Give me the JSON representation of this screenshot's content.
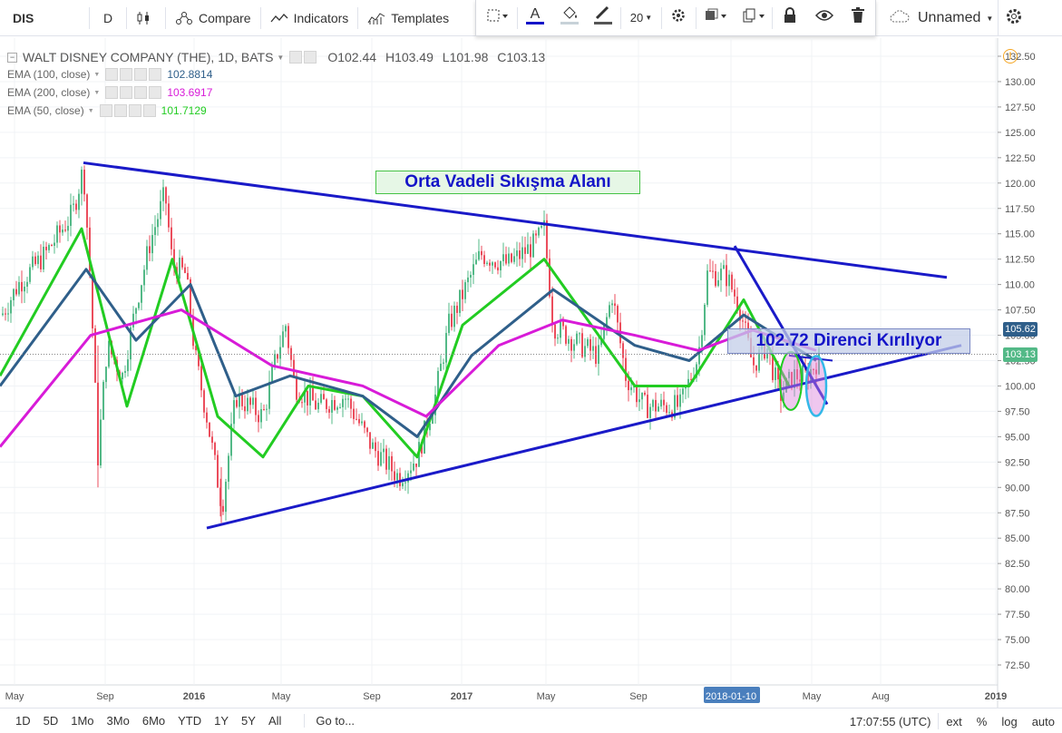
{
  "toolbar": {
    "symbol": "DIS",
    "interval": "D",
    "compare_label": "Compare",
    "indicators_label": "Indicators",
    "templates_label": "Templates",
    "font_size": "20",
    "layout_name": "Unnamed"
  },
  "legend": {
    "title": "WALT DISNEY COMPANY (THE), 1D, BATS",
    "open": "O102.44",
    "high": "H103.49",
    "low": "L101.98",
    "close": "C103.13",
    "indicators": [
      {
        "name": "EMA (100, close)",
        "value": "102.8814",
        "color": "#2f5f8a"
      },
      {
        "name": "EMA (200, close)",
        "value": "103.6917",
        "color": "#d81bd8"
      },
      {
        "name": "EMA (50, close)",
        "value": "101.7129",
        "color": "#22cc22"
      }
    ]
  },
  "annotations": {
    "zone_label": "Orta Vadeli Sıkışma Alanı",
    "break_label": "102.72 Direnci Kırılıyor"
  },
  "price_axis": {
    "ticks": [
      "132.50",
      "130.00",
      "127.50",
      "125.00",
      "122.50",
      "120.00",
      "117.50",
      "115.00",
      "112.50",
      "110.00",
      "107.50",
      "105.00",
      "102.50",
      "100.00",
      "97.50",
      "95.00",
      "92.50",
      "90.00",
      "87.50",
      "85.00",
      "82.50",
      "80.00",
      "77.50",
      "75.00",
      "72.50"
    ],
    "tag_upper": "105.62",
    "tag_last": "103.13"
  },
  "time_axis": {
    "labels": [
      "May",
      "Sep",
      "2016",
      "May",
      "Sep",
      "2017",
      "May",
      "Sep",
      "2018-01-10",
      "May",
      "Aug",
      "2019"
    ]
  },
  "bottom": {
    "ranges": [
      "1D",
      "5D",
      "1Mo",
      "3Mo",
      "6Mo",
      "YTD",
      "1Y",
      "5Y",
      "All"
    ],
    "goto": "Go to...",
    "time": "17:07:55 (UTC)",
    "ext": "ext",
    "percent": "%",
    "log": "log",
    "auto": "auto"
  },
  "colors": {
    "ema50": "#22cc22",
    "ema100": "#2f5f8a",
    "ema200": "#d81bd8",
    "trendline": "#1a1ac8",
    "candle_up": "#53b987",
    "candle_down": "#eb4d5c"
  },
  "chart_data": {
    "type": "candlestick",
    "title": "WALT DISNEY COMPANY (THE), 1D, BATS",
    "y_range": [
      72.5,
      132.5
    ],
    "series": [
      {
        "name": "EMA (50, close)",
        "points": [
          [
            0,
            101
          ],
          [
            90,
            115.5
          ],
          [
            140,
            98
          ],
          [
            190,
            112.5
          ],
          [
            240,
            97
          ],
          [
            290,
            93
          ],
          [
            340,
            100
          ],
          [
            400,
            99
          ],
          [
            460,
            93
          ],
          [
            510,
            106
          ],
          [
            600,
            112.5
          ],
          [
            700,
            100
          ],
          [
            760,
            100
          ],
          [
            820,
            108.5
          ],
          [
            870,
            100
          ]
        ]
      },
      {
        "name": "EMA (100, close)",
        "points": [
          [
            0,
            100
          ],
          [
            95,
            111.5
          ],
          [
            150,
            104.5
          ],
          [
            210,
            110
          ],
          [
            260,
            99
          ],
          [
            320,
            101
          ],
          [
            400,
            99
          ],
          [
            460,
            95
          ],
          [
            520,
            103
          ],
          [
            610,
            109.5
          ],
          [
            700,
            104
          ],
          [
            760,
            102.5
          ],
          [
            820,
            107
          ],
          [
            900,
            102.5
          ]
        ]
      },
      {
        "name": "EMA (200, close)",
        "points": [
          [
            0,
            94
          ],
          [
            100,
            105
          ],
          [
            200,
            107.5
          ],
          [
            300,
            102
          ],
          [
            400,
            100
          ],
          [
            470,
            97
          ],
          [
            550,
            104
          ],
          [
            620,
            106.5
          ],
          [
            700,
            105
          ],
          [
            770,
            103.5
          ],
          [
            830,
            105.5
          ],
          [
            900,
            103.5
          ]
        ]
      }
    ],
    "trendlines": [
      {
        "name": "upper resistance",
        "from": [
          92,
          122
        ],
        "to": [
          1044,
          110.7
        ]
      },
      {
        "name": "lower support",
        "from": [
          228,
          86
        ],
        "to": [
          1060,
          104
        ]
      },
      {
        "name": "short-term down",
        "from": [
          810,
          113.8
        ],
        "to": [
          912,
          98.2
        ]
      }
    ]
  }
}
